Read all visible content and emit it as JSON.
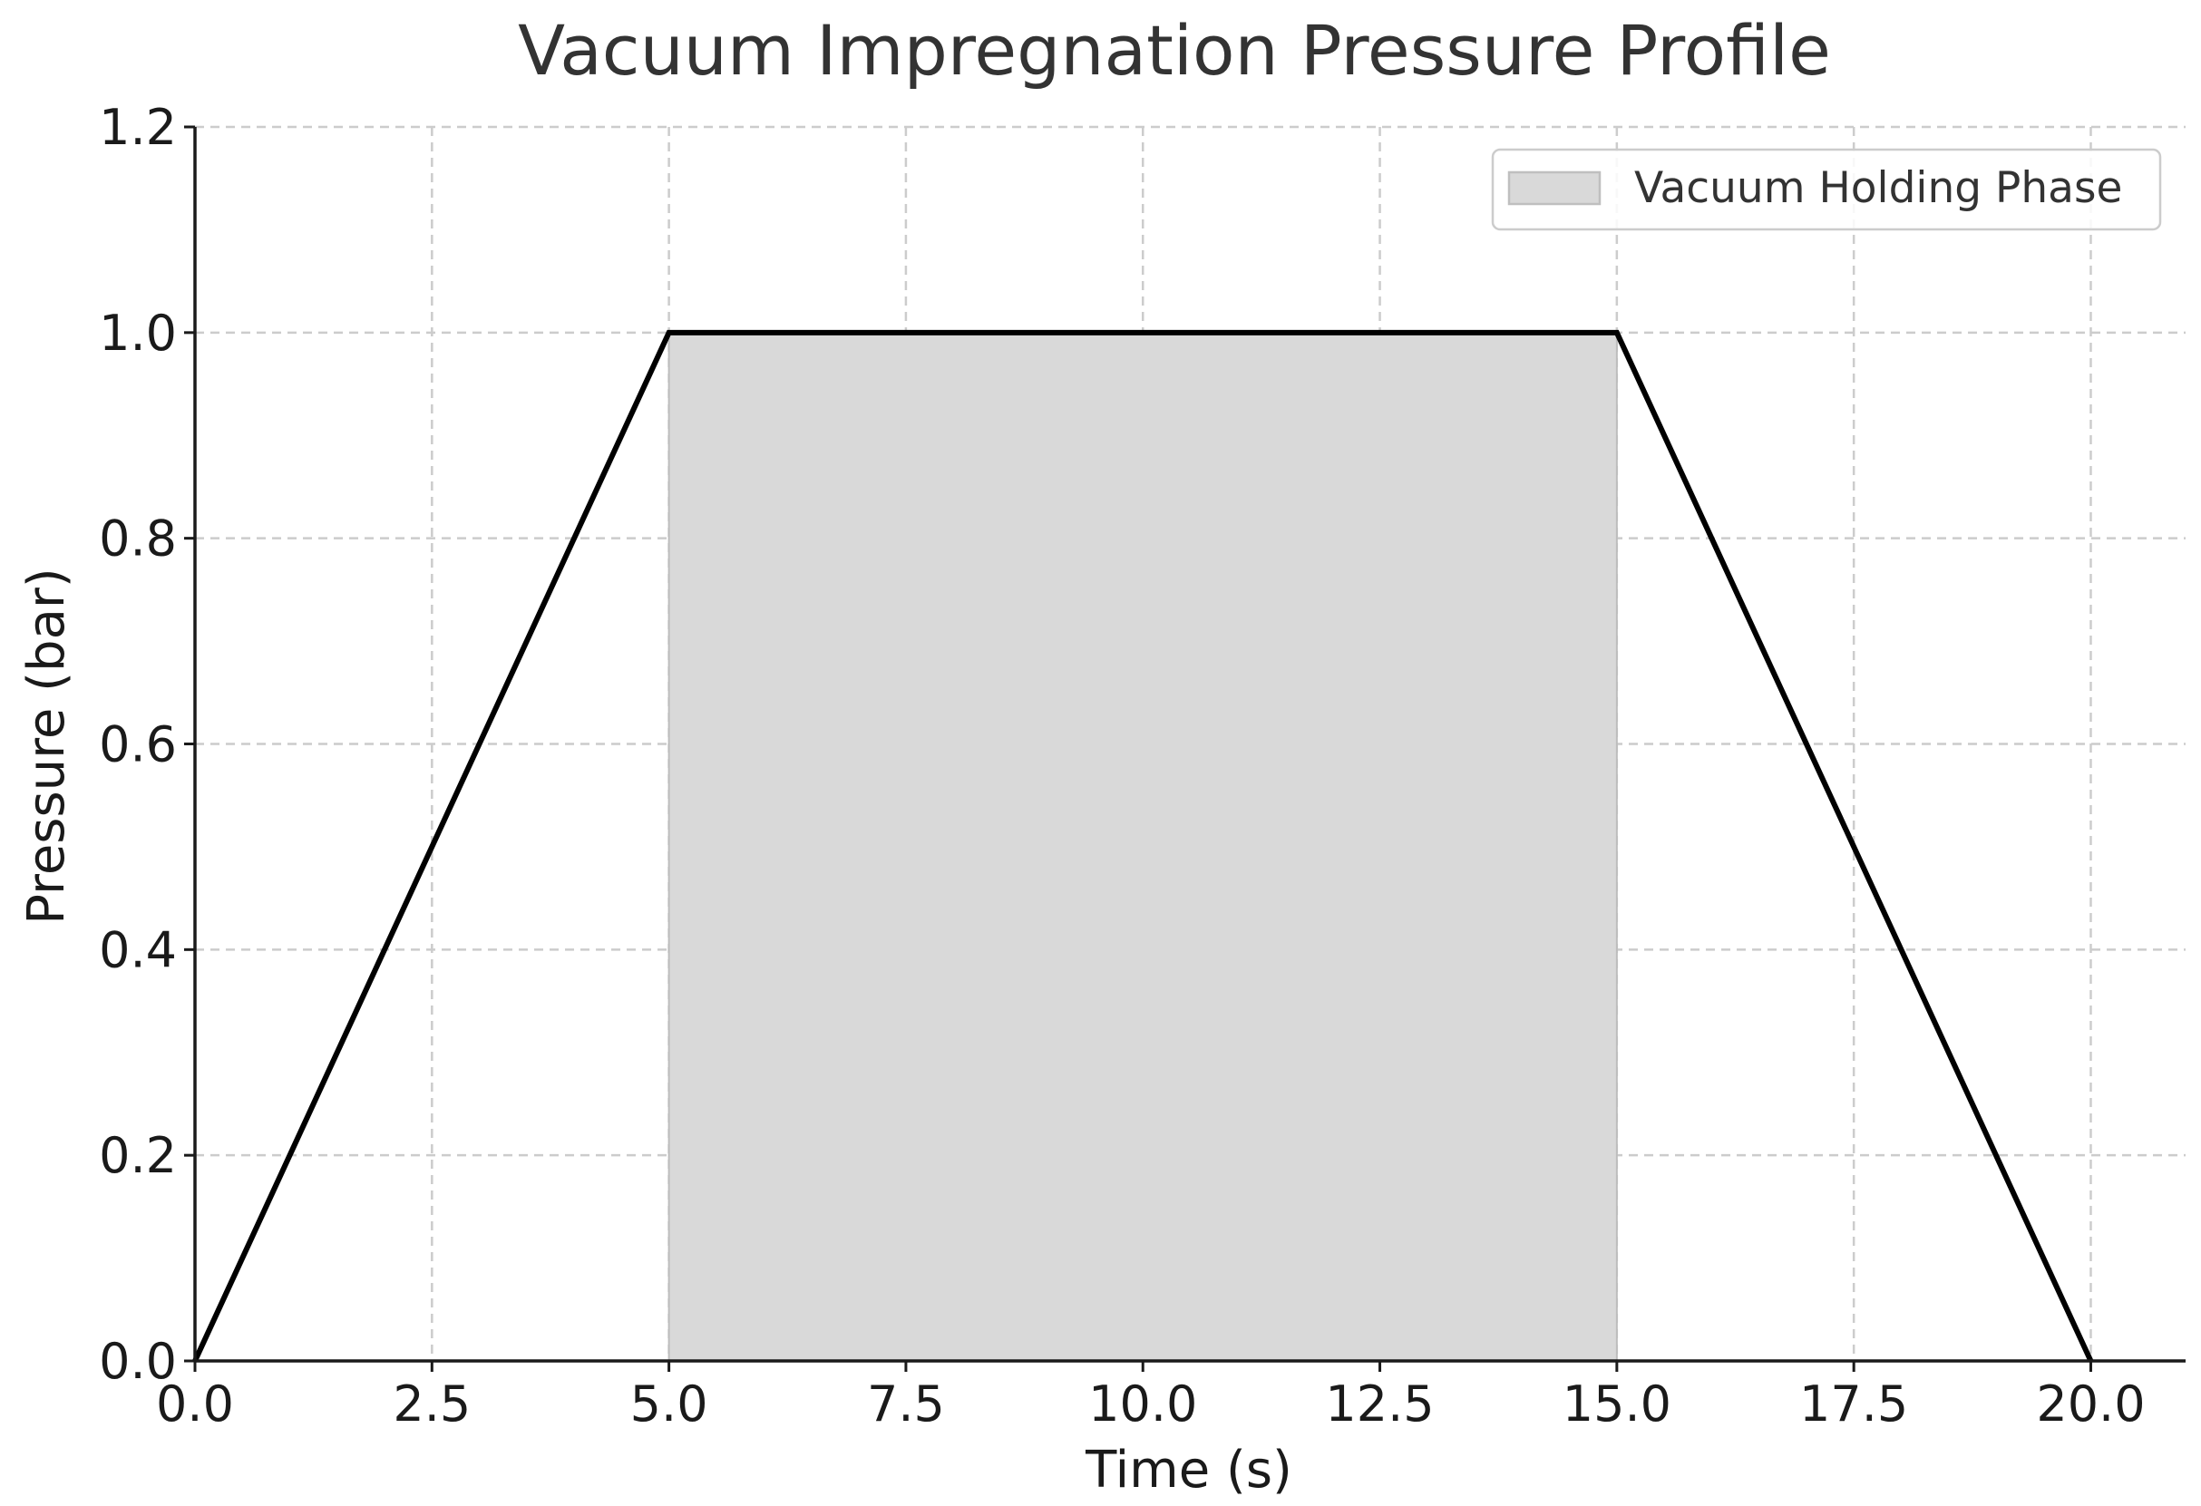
{
  "chart_data": {
    "type": "line",
    "title": "Vacuum Impregnation Pressure Profile",
    "xlabel": "Time (s)",
    "ylabel": "Pressure (bar)",
    "xlim": [
      0,
      21
    ],
    "ylim": [
      0,
      1.2
    ],
    "x_ticks": [
      0,
      2.5,
      5,
      7.5,
      10,
      12.5,
      15,
      17.5,
      20
    ],
    "x_tick_labels": [
      "0.0",
      "2.5",
      "5.0",
      "7.5",
      "10.0",
      "12.5",
      "15.0",
      "17.5",
      "20.0"
    ],
    "y_ticks": [
      0,
      0.2,
      0.4,
      0.6,
      0.8,
      1.0,
      1.2
    ],
    "y_tick_labels": [
      "0.0",
      "0.2",
      "0.4",
      "0.6",
      "0.8",
      "1.0",
      "1.2"
    ],
    "grid": true,
    "legend_position": "top-right",
    "series": [
      {
        "x": [
          0,
          5,
          15,
          20
        ],
        "y": [
          0,
          1.0,
          1.0,
          0
        ],
        "color": "#000000"
      }
    ],
    "shaded_regions": [
      {
        "name": "Vacuum Holding Phase",
        "x_start": 5,
        "x_end": 15,
        "y_top": 1.0,
        "color": "#d9d9d9"
      }
    ]
  }
}
